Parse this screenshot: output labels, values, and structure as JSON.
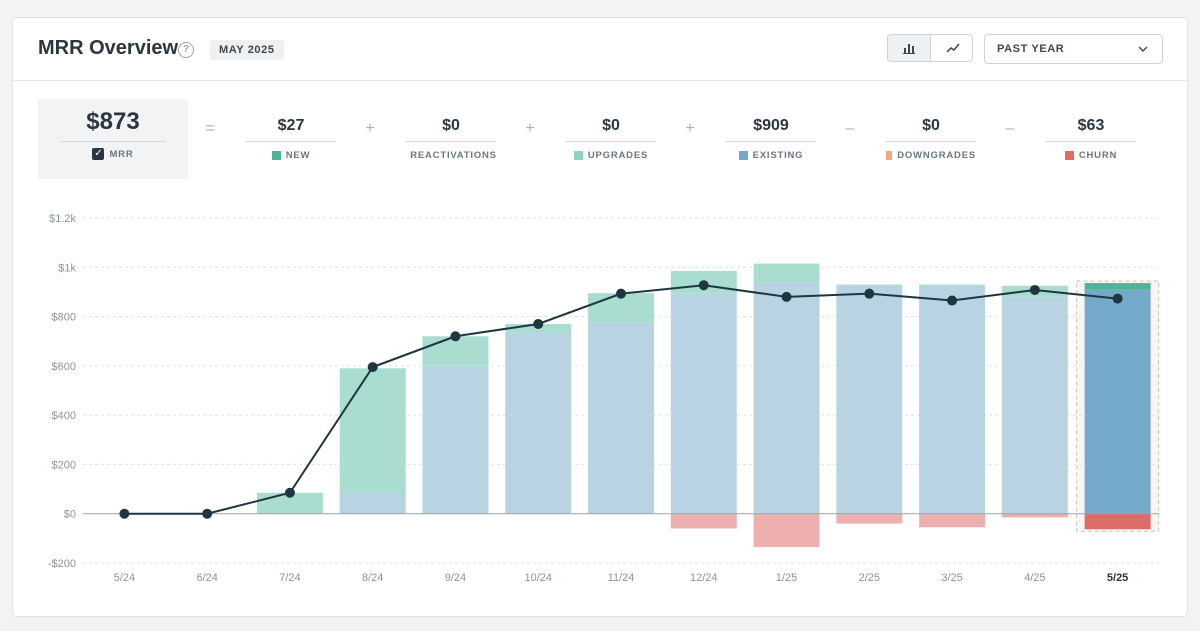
{
  "header": {
    "title": "MRR Overview",
    "help_glyph": "?",
    "date_badge": "MAY 2025",
    "range_label": "PAST YEAR"
  },
  "icons": {
    "help": "question-circle-icon",
    "bar_view": "bar-chart-icon",
    "line_view": "line-chart-icon",
    "dropdown": "chevron-down-icon",
    "mrr_check": "checkbox-checked-icon"
  },
  "summary": {
    "mrr": {
      "value": "$873",
      "label": "MRR"
    },
    "operators": [
      "=",
      "+",
      "+",
      "+",
      "–",
      "–"
    ],
    "metrics": [
      {
        "value": "$27",
        "label": "NEW",
        "color": "#4fb39a"
      },
      {
        "value": "$0",
        "label": "REACTIVATIONS",
        "color": "#4fb39a"
      },
      {
        "value": "$0",
        "label": "UPGRADES",
        "color": "#8cd4bf"
      },
      {
        "value": "$909",
        "label": "EXISTING",
        "color": "#74a9c9"
      },
      {
        "value": "$0",
        "label": "DOWNGRADES",
        "color": "#f2a97a"
      },
      {
        "value": "$63",
        "label": "CHURN",
        "color": "#dd6b66"
      }
    ]
  },
  "chart_data": {
    "type": "bar",
    "categories": [
      "5/24",
      "6/24",
      "7/24",
      "8/24",
      "9/24",
      "10/24",
      "11/24",
      "12/24",
      "1/25",
      "2/25",
      "3/25",
      "4/25",
      "5/25"
    ],
    "highlight_category": "5/25",
    "y_ticks": [
      "-$200",
      "$0",
      "$200",
      "$400",
      "$600",
      "$800",
      "$1k",
      "$1.2k"
    ],
    "ylim": [
      -200,
      1200
    ],
    "grid": true,
    "series": [
      {
        "name": "EXISTING",
        "values": [
          0,
          0,
          0,
          85,
          600,
          735,
          775,
          895,
          940,
          930,
          925,
          880,
          909
        ]
      },
      {
        "name": "NEW",
        "values": [
          0,
          0,
          85,
          505,
          120,
          35,
          120,
          90,
          75,
          0,
          5,
          45,
          27
        ]
      },
      {
        "name": "CHURN",
        "values": [
          0,
          0,
          0,
          0,
          0,
          0,
          0,
          -60,
          -135,
          -40,
          -55,
          -15,
          -63
        ]
      },
      {
        "name": "MRR",
        "type": "line",
        "values": [
          0,
          0,
          85,
          595,
          720,
          770,
          893,
          927,
          880,
          893,
          865,
          908,
          873
        ]
      }
    ],
    "colors": {
      "existing": "#b8d4e2",
      "existing_current": "#74a9c9",
      "new": "#a8ddd0",
      "new_current": "#4fb39a",
      "churn": "#edb0ae",
      "churn_current": "#dd6b66",
      "line": "#1f3640"
    }
  }
}
